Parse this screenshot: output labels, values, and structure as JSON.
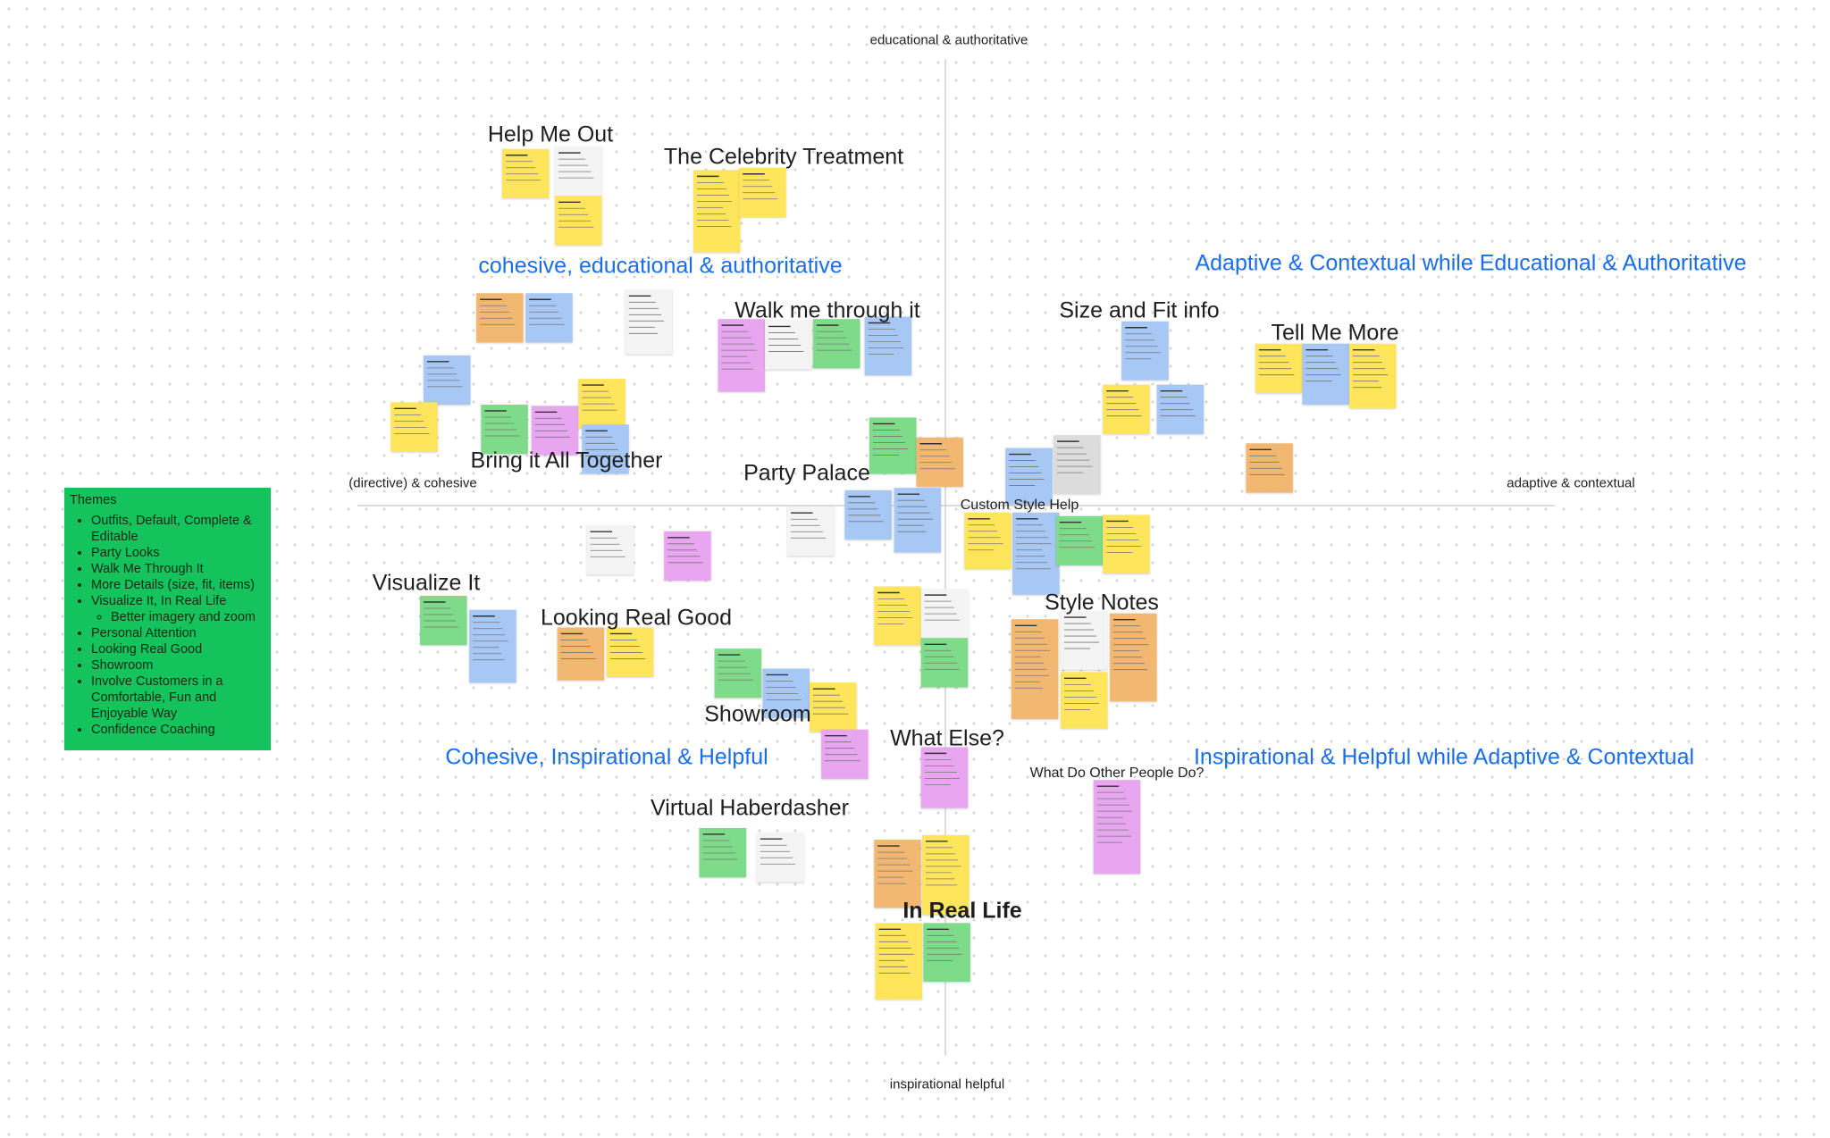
{
  "axes": {
    "top": "educational & authoritative",
    "bottom": "inspirational helpful",
    "left": "(directive) & cohesive",
    "right": "adaptive & contextual"
  },
  "quadrants": [
    "cohesive, educational & authoritative",
    "Adaptive & Contextual while Educational & Authoritative",
    "Cohesive, Inspirational & Helpful",
    "Inspirational & Helpful while Adaptive & Contextual"
  ],
  "clusters": [
    "Help Me Out",
    "The Celebrity Treatment",
    "Walk me through it",
    "Size and Fit info",
    "Tell Me More",
    "Bring it All Together",
    "Party Palace",
    "Custom Style Help",
    "Visualize It",
    "Looking Real Good",
    "Style Notes",
    "Showroom",
    "What Else?",
    "What Do Other People Do?",
    "Virtual Haberdasher",
    "In Real Life"
  ],
  "themes": {
    "title": "Themes",
    "items": [
      {
        "text": "Outfits, Default, Complete & Editable"
      },
      {
        "text": "Party Looks"
      },
      {
        "text": "Walk Me Through It"
      },
      {
        "text": "More Details (size, fit, items)"
      },
      {
        "text": "Visualize It, In Real Life",
        "subitems": [
          "Better imagery and zoom"
        ]
      },
      {
        "text": "Personal Attention"
      },
      {
        "text": "Looking Real Good"
      },
      {
        "text": "Showroom"
      },
      {
        "text": "Involve Customers in a Comfortable, Fun and Enjoyable Way"
      },
      {
        "text": "Confidence Coaching"
      }
    ]
  }
}
